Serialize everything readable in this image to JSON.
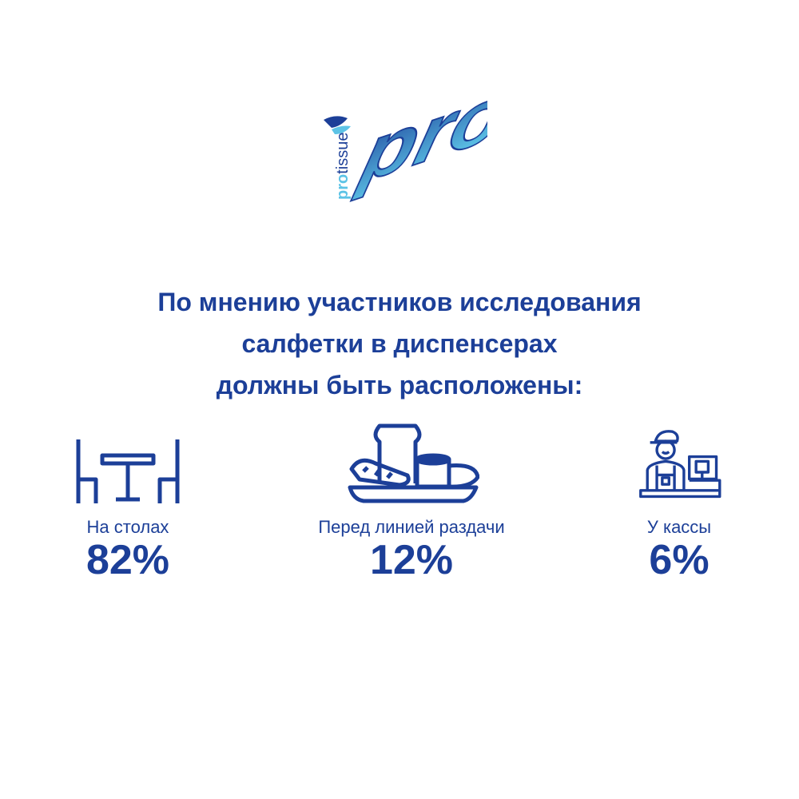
{
  "logo": {
    "brand_main": "pro",
    "brand_sub_part1": "pro",
    "brand_sub_part2": "tissue"
  },
  "heading": {
    "line1": "По мнению участников исследования",
    "line2": "салфетки в диспенсерах",
    "line3": "должны быть расположены:"
  },
  "items": [
    {
      "icon": "table-chairs-icon",
      "label": "На столах",
      "value": "82%"
    },
    {
      "icon": "food-tray-icon",
      "label": "Перед линией раздачи",
      "value": "12%"
    },
    {
      "icon": "cashier-icon",
      "label": "У кассы",
      "value": "6%"
    }
  ],
  "colors": {
    "primary": "#1c3f98",
    "logo_light": "#5cc3e6",
    "logo_dark": "#1c3f98"
  }
}
